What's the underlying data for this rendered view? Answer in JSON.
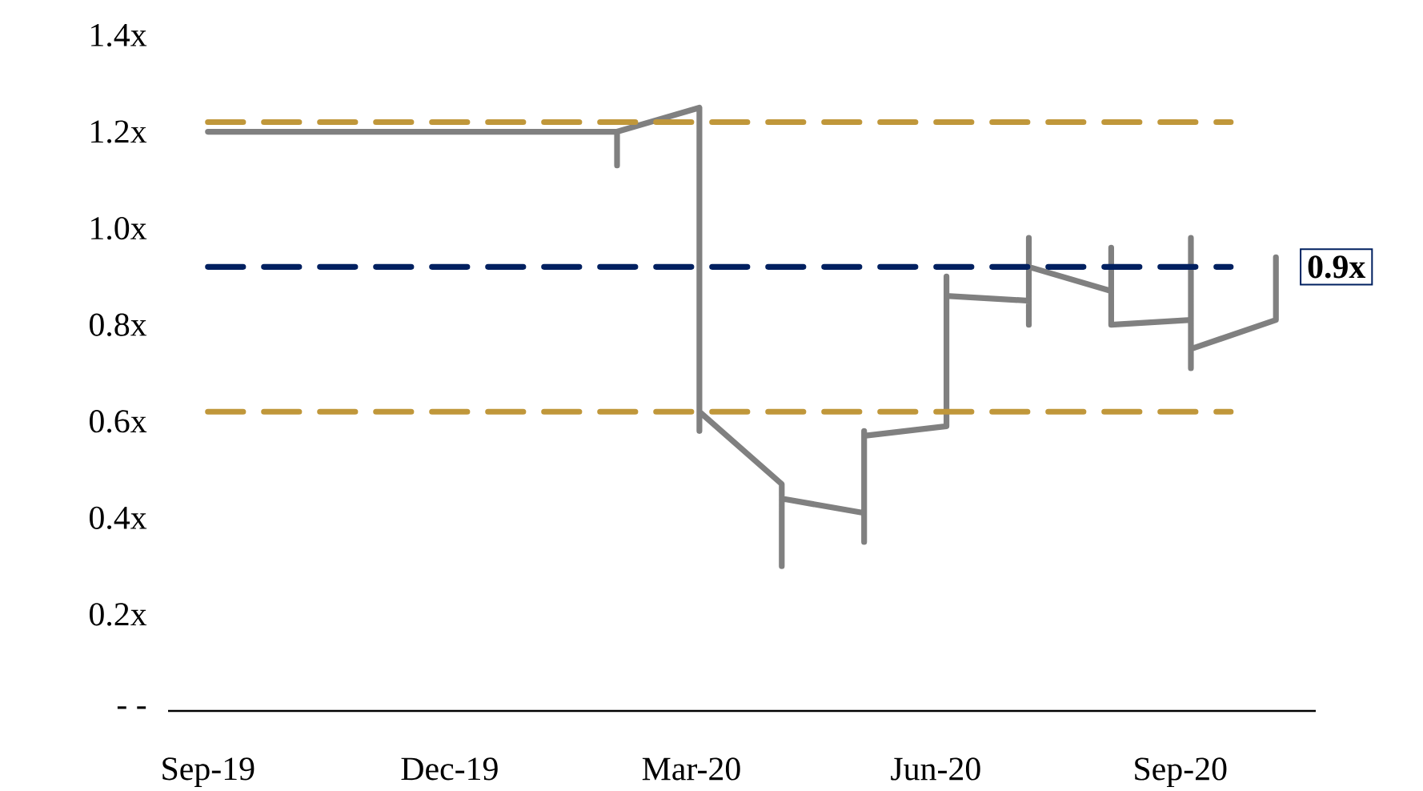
{
  "chart_data": {
    "type": "line",
    "xlim": [
      "2019-08-17",
      "2020-10-22"
    ],
    "xticks": [
      {
        "value": "2019-09-01",
        "label": "Sep-19"
      },
      {
        "value": "2019-12-01",
        "label": "Dec-19"
      },
      {
        "value": "2020-03-01",
        "label": "Mar-20"
      },
      {
        "value": "2020-06-01",
        "label": "Jun-20"
      },
      {
        "value": "2020-09-01",
        "label": "Sep-20"
      }
    ],
    "ylim": [
      0,
      1.4
    ],
    "yticks": [
      {
        "value": 0,
        "label": "- -"
      },
      {
        "value": 0.2,
        "label": "0.2x"
      },
      {
        "value": 0.4,
        "label": "0.4x"
      },
      {
        "value": 0.6,
        "label": "0.6x"
      },
      {
        "value": 0.8,
        "label": "0.8x"
      },
      {
        "value": 1.0,
        "label": "1.0x"
      },
      {
        "value": 1.2,
        "label": "1.2x"
      },
      {
        "value": 1.4,
        "label": "1.4x"
      }
    ],
    "grid": false,
    "line_style": "solid",
    "series": [
      {
        "color": "#808080",
        "x": [
          "2019-09-01",
          "2020-02-02",
          "2020-02-02",
          "2020-02-02",
          "2020-03-04",
          "2020-03-04",
          "2020-03-04",
          "2020-04-04",
          "2020-04-04",
          "2020-04-04",
          "2020-05-05",
          "2020-05-05",
          "2020-05-05",
          "2020-05-05",
          "2020-06-05",
          "2020-06-05",
          "2020-06-05",
          "2020-07-06",
          "2020-07-06",
          "2020-07-06",
          "2020-07-06",
          "2020-08-06",
          "2020-08-06",
          "2020-08-06",
          "2020-09-05",
          "2020-09-05",
          "2020-09-05",
          "2020-09-05",
          "2020-10-07",
          "2020-10-07"
        ],
        "values": [
          1.2,
          1.2,
          1.13,
          1.2,
          1.25,
          0.58,
          0.62,
          0.47,
          0.3,
          0.44,
          0.41,
          0.35,
          0.58,
          0.57,
          0.59,
          0.9,
          0.86,
          0.85,
          0.98,
          0.8,
          0.92,
          0.87,
          0.96,
          0.8,
          0.81,
          0.98,
          0.71,
          0.75,
          0.81,
          0.94
        ]
      }
    ],
    "ref_lines": [
      {
        "axis": "y",
        "value": 1.22,
        "color": "#c0973a",
        "line_style": "dashed"
      },
      {
        "axis": "y",
        "value": 0.92,
        "color": "#002060",
        "line_style": "dashed",
        "label": "0.9x"
      },
      {
        "axis": "y",
        "value": 0.62,
        "color": "#c0973a",
        "line_style": "dashed"
      }
    ]
  }
}
